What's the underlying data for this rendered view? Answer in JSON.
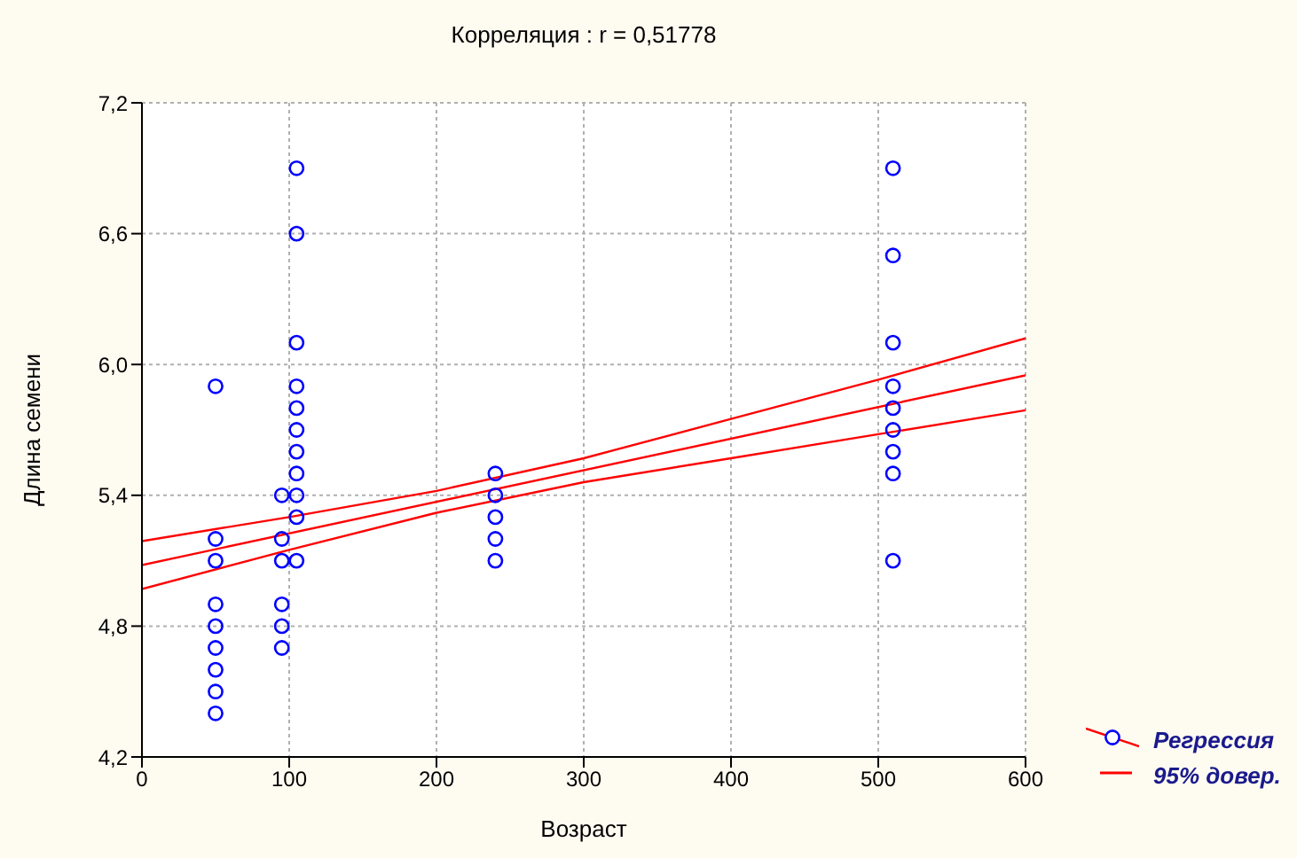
{
  "chart_data": {
    "type": "scatter",
    "title": "Корреляция : r = 0,51778",
    "xlabel": "Возраст",
    "ylabel": "Длина семени",
    "xlim": [
      0,
      600
    ],
    "xticks": [
      0,
      100,
      200,
      300,
      400,
      500,
      600
    ],
    "ylim": [
      4.2,
      7.2
    ],
    "yticks": [
      {
        "value": 4.2,
        "label": "4,2"
      },
      {
        "value": 4.8,
        "label": "4,8"
      },
      {
        "value": 5.4,
        "label": "5,4"
      },
      {
        "value": 6.0,
        "label": "6,0"
      },
      {
        "value": 6.6,
        "label": "6,6"
      },
      {
        "value": 7.2,
        "label": "7,2"
      }
    ],
    "grid": true,
    "legend": "bottom right",
    "marker": "circle",
    "line_style": "solid",
    "series": [
      {
        "name": "Регрессия",
        "color": "#0000ff",
        "x": [
          50,
          50,
          50,
          50,
          50,
          50,
          50,
          50,
          50,
          95,
          95,
          95,
          95,
          95,
          95,
          105,
          105,
          105,
          105,
          105,
          105,
          105,
          105,
          105,
          105,
          105,
          240,
          240,
          240,
          240,
          240,
          510,
          510,
          510,
          510,
          510,
          510,
          510,
          510,
          510
        ],
        "values": [
          5.9,
          5.2,
          5.1,
          4.9,
          4.8,
          4.7,
          4.6,
          4.5,
          4.4,
          5.4,
          5.2,
          5.1,
          4.9,
          4.8,
          4.7,
          6.9,
          6.6,
          6.1,
          5.9,
          5.8,
          5.7,
          5.6,
          5.5,
          5.4,
          5.3,
          5.1,
          5.5,
          5.4,
          5.3,
          5.2,
          5.1,
          6.9,
          6.5,
          6.1,
          5.9,
          5.8,
          5.7,
          5.6,
          5.5,
          5.1
        ]
      },
      {
        "type": "line",
        "marker": "none",
        "color": "#ff0000",
        "x": [
          0,
          600
        ],
        "values": [
          5.08,
          5.95
        ]
      },
      {
        "type": "line",
        "marker": "none",
        "name": "95% довер.",
        "color": "#ff0000",
        "x": [
          0,
          100,
          200,
          300,
          400,
          500,
          600
        ],
        "values": [
          5.19,
          5.3,
          5.42,
          5.57,
          5.75,
          5.93,
          6.12
        ]
      },
      {
        "type": "line",
        "marker": "none",
        "color": "#ff0000",
        "x": [
          0,
          100,
          200,
          300,
          400,
          500,
          600
        ],
        "values": [
          4.97,
          5.15,
          5.32,
          5.46,
          5.57,
          5.68,
          5.79
        ]
      }
    ]
  }
}
